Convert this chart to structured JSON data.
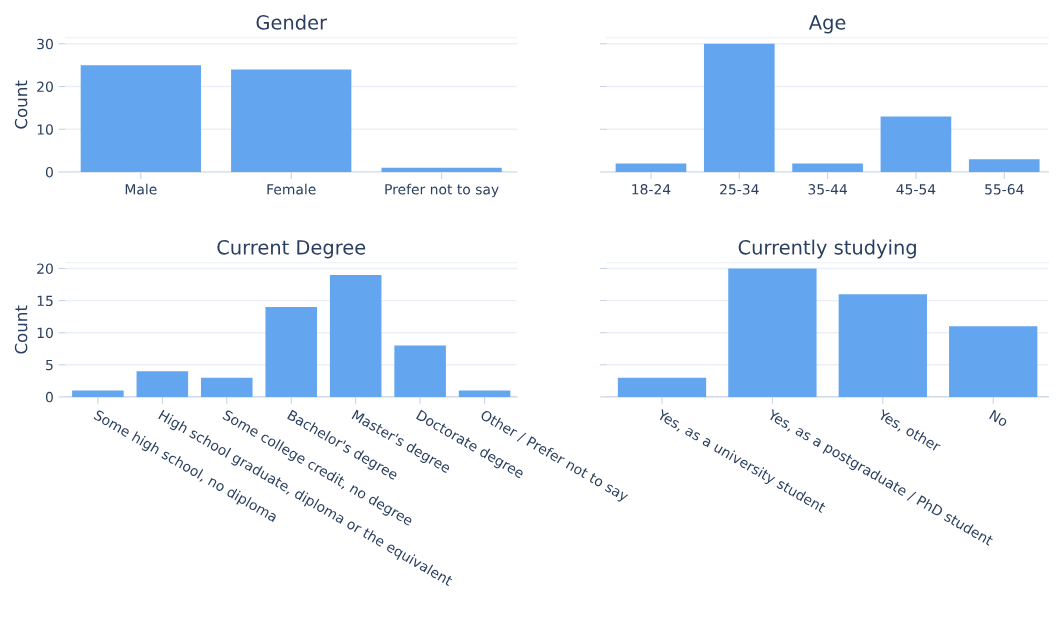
{
  "chart_data": [
    {
      "type": "bar",
      "title": "Gender",
      "ylabel": "Count",
      "categories": [
        "Male",
        "Female",
        "Prefer not to say"
      ],
      "values": [
        25,
        24,
        1
      ],
      "color": "#63a6ef",
      "ylim": [
        0,
        31.4
      ],
      "yticks": [
        0,
        10,
        20,
        30
      ],
      "grid": "y"
    },
    {
      "type": "bar",
      "title": "Age",
      "categories": [
        "18-24",
        "25-34",
        "35-44",
        "45-54",
        "55-64"
      ],
      "values": [
        2,
        30,
        2,
        13,
        3
      ],
      "color": "#63a6ef",
      "ylim": [
        0,
        31.4
      ],
      "yticks": [
        0,
        10,
        20,
        30
      ],
      "grid": "y",
      "tick_labels": "x"
    },
    {
      "type": "bar",
      "title": "Current Degree",
      "ylabel": "Count",
      "categories": [
        "Some high school, no diploma",
        "High school graduate, diploma or the equivalent",
        "Some college credit, no degree",
        "Bachelor's degree",
        "Master's degree",
        "Doctorate degree",
        "Other / Prefer not to say"
      ],
      "values": [
        1,
        4,
        3,
        14,
        19,
        8,
        1
      ],
      "color": "#63a6ef",
      "ylim": [
        0,
        20.9
      ],
      "yticks": [
        0,
        5,
        10,
        15,
        20
      ],
      "grid": "y"
    },
    {
      "type": "bar",
      "title": "Currently studying",
      "categories": [
        "Yes, as a university student",
        "Yes, as a postgraduate / PhD student",
        "Yes, other",
        "No"
      ],
      "values": [
        3,
        20,
        16,
        11
      ],
      "color": "#63a6ef",
      "ylim": [
        0,
        20.9
      ],
      "yticks": [
        0,
        5,
        10,
        15,
        20
      ],
      "grid": "y",
      "tick_labels": "x"
    }
  ]
}
